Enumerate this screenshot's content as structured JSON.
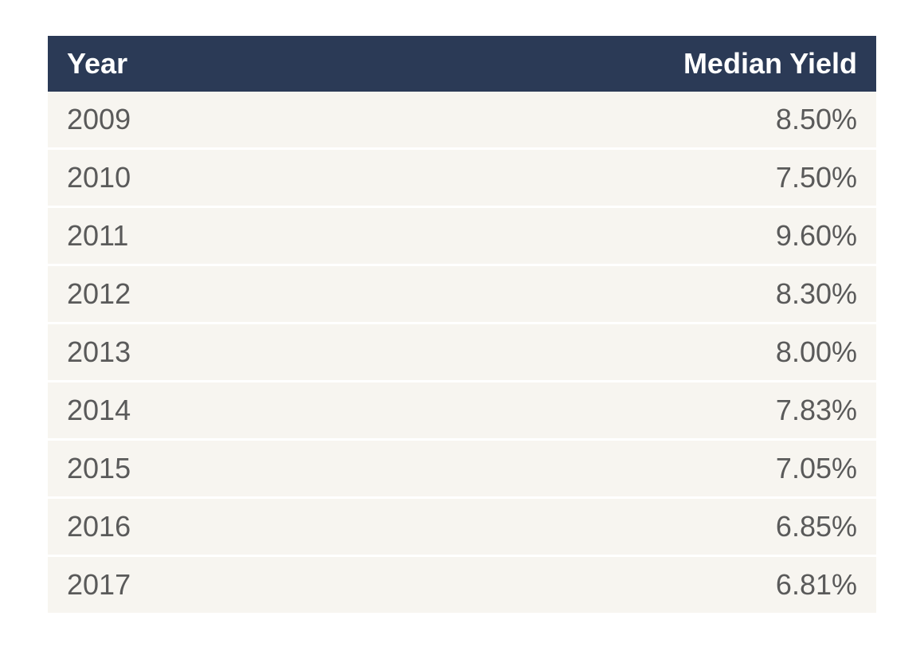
{
  "table": {
    "type": "table",
    "header_bg_color": "#2b3a56",
    "header_text_color": "#ffffff",
    "row_bg_color": "#f7f5f0",
    "row_text_color": "#5a5a5a",
    "row_separator_color": "#ffffff",
    "header_fontsize": 36,
    "cell_fontsize": 36,
    "columns": [
      {
        "label": "Year",
        "align": "left"
      },
      {
        "label": "Median Yield",
        "align": "right"
      }
    ],
    "rows": [
      {
        "year": "2009",
        "yield": "8.50%"
      },
      {
        "year": "2010",
        "yield": "7.50%"
      },
      {
        "year": "2011",
        "yield": "9.60%"
      },
      {
        "year": "2012",
        "yield": "8.30%"
      },
      {
        "year": "2013",
        "yield": "8.00%"
      },
      {
        "year": "2014",
        "yield": "7.83%"
      },
      {
        "year": "2015",
        "yield": "7.05%"
      },
      {
        "year": "2016",
        "yield": "6.85%"
      },
      {
        "year": "2017",
        "yield": "6.81%"
      }
    ]
  }
}
